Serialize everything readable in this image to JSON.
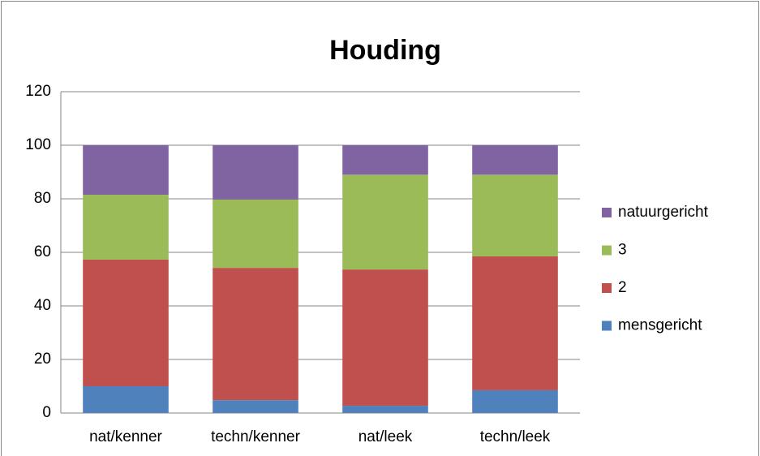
{
  "chart_data": {
    "type": "stacked_bar",
    "title": "Houding",
    "categories": [
      "nat/kenner",
      "techn/kenner",
      "nat/leek",
      "techn/leek"
    ],
    "series": [
      {
        "name": "mensgericht",
        "color": "#4f81bd",
        "values": [
          10,
          4.8,
          2.7,
          8.5
        ]
      },
      {
        "name": "2",
        "color": "#c0504d",
        "values": [
          47.3,
          49.4,
          50.9,
          50
        ]
      },
      {
        "name": "3",
        "color": "#9bbb59",
        "values": [
          24.2,
          25.5,
          35.4,
          30.5
        ]
      },
      {
        "name": "natuurgericht",
        "color": "#8064a2",
        "values": [
          18.5,
          20.3,
          11,
          11
        ]
      }
    ],
    "ylim": [
      0,
      120
    ],
    "yticks": [
      0,
      20,
      40,
      60,
      80,
      100,
      120
    ],
    "grid": true,
    "legend": "right"
  }
}
